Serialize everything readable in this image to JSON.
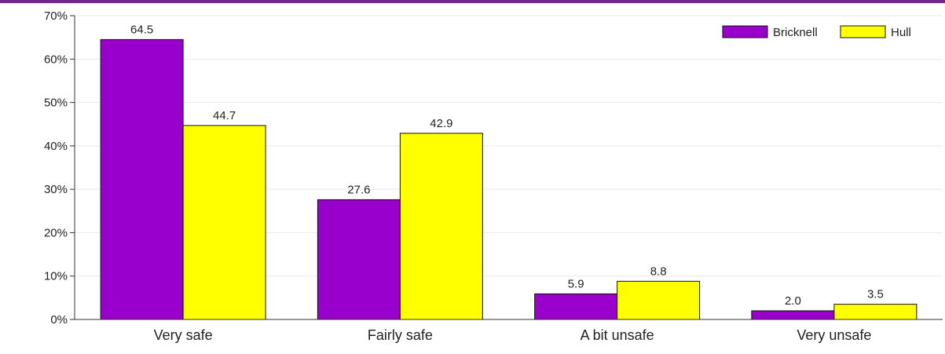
{
  "theme": {
    "top_bar_color": "#6b2a8c",
    "grid_color": "#e9e9e9",
    "axis_color": "#333333"
  },
  "chart_data": {
    "type": "bar",
    "title": "",
    "xlabel": "",
    "ylabel": "",
    "categories": [
      "Very safe",
      "Fairly safe",
      "A bit unsafe",
      "Very unsafe"
    ],
    "series": [
      {
        "name": "Bricknell",
        "color": "#9900cc",
        "values": [
          64.5,
          27.6,
          5.9,
          2.0
        ],
        "labels": [
          "64.5",
          "27.6",
          "5.9",
          "2.0"
        ]
      },
      {
        "name": "Hull",
        "color": "#ffff00",
        "values": [
          44.7,
          42.9,
          8.8,
          3.5
        ],
        "labels": [
          "44.7",
          "42.9",
          "8.8",
          "3.5"
        ]
      }
    ],
    "ylim": [
      0,
      70
    ],
    "yticks": [
      0,
      10,
      20,
      30,
      40,
      50,
      60,
      70
    ],
    "ytick_labels": [
      "0%",
      "10%",
      "20%",
      "30%",
      "40%",
      "50%",
      "60%",
      "70%"
    ],
    "grid": true,
    "legend_position": "top-right"
  }
}
